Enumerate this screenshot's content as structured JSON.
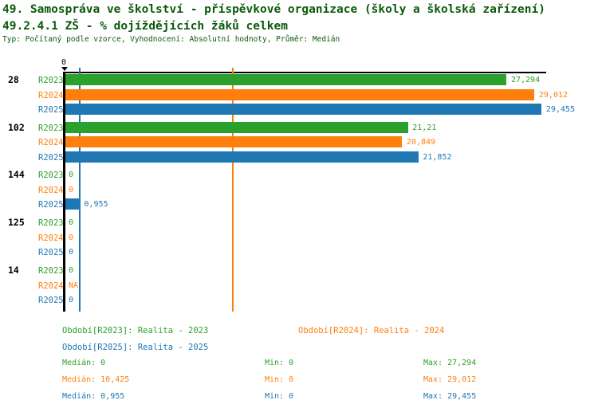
{
  "title": "49. Samospráva ve školství - příspěvkové organizace (školy a školská zařízení)",
  "subtitle": "49.2.4.1 ZŠ - % dojíždějících žáků celkem",
  "meta_line": "Typ: Počítaný podle vzorce, Vyhodnocení: Absolutní hodnoty, Průměr: Medián",
  "colors": {
    "heading_green": "#0a5a0a",
    "r2023_green": "#2ca02c",
    "r2024_orange": "#ff7f0e",
    "r2025_blue": "#1f77b4",
    "axis_black": "#000000"
  },
  "chart_data": {
    "type": "bar",
    "orientation": "horizontal",
    "axis_zero_label": "0",
    "xlim": [
      0,
      29.73
    ],
    "grid": false,
    "series": [
      {
        "key": "R2023",
        "name": "Realita - 2023",
        "color": "#2ca02c"
      },
      {
        "key": "R2024",
        "name": "Realita - 2024",
        "color": "#ff7f0e"
      },
      {
        "key": "R2025",
        "name": "Realita - 2025",
        "color": "#1f77b4"
      }
    ],
    "groups": [
      {
        "id": "28",
        "bars": [
          {
            "series": "R2023",
            "value": 27.294,
            "label": "27,294"
          },
          {
            "series": "R2024",
            "value": 29.012,
            "label": "29,012"
          },
          {
            "series": "R2025",
            "value": 29.455,
            "label": "29,455"
          }
        ]
      },
      {
        "id": "102",
        "bars": [
          {
            "series": "R2023",
            "value": 21.21,
            "label": "21,21"
          },
          {
            "series": "R2024",
            "value": 20.849,
            "label": "20,849"
          },
          {
            "series": "R2025",
            "value": 21.852,
            "label": "21,852"
          }
        ]
      },
      {
        "id": "144",
        "bars": [
          {
            "series": "R2023",
            "value": 0,
            "label": "0"
          },
          {
            "series": "R2024",
            "value": 0,
            "label": "0"
          },
          {
            "series": "R2025",
            "value": 0.955,
            "label": "0,955"
          }
        ]
      },
      {
        "id": "125",
        "bars": [
          {
            "series": "R2023",
            "value": 0,
            "label": "0"
          },
          {
            "series": "R2024",
            "value": 0,
            "label": "0"
          },
          {
            "series": "R2025",
            "value": 0,
            "label": "0"
          }
        ]
      },
      {
        "id": "14",
        "bars": [
          {
            "series": "R2023",
            "value": 0,
            "label": "0"
          },
          {
            "series": "R2024",
            "value": null,
            "label": "NA"
          },
          {
            "series": "R2025",
            "value": 0,
            "label": "0"
          }
        ]
      }
    ],
    "reference_lines": [
      {
        "series": "R2024",
        "value": 10.425,
        "color": "#ff7f0e",
        "meaning": "median R2024"
      },
      {
        "series": "R2025",
        "value": 0.955,
        "color": "#1f77b4",
        "meaning": "median R2025"
      }
    ]
  },
  "legend": {
    "items": [
      {
        "label": "Období[R2023]: Realita - 2023",
        "color": "#2ca02c"
      },
      {
        "label": "Období[R2024]: Realita - 2024",
        "color": "#ff7f0e"
      },
      {
        "label": "Období[R2025]: Realita - 2025",
        "color": "#1f77b4"
      }
    ],
    "stats": [
      {
        "median": "Medián: 0",
        "min": "Min: 0",
        "max": "Max: 27,294",
        "color": "#2ca02c"
      },
      {
        "median": "Medián: 10,425",
        "min": "Min: 0",
        "max": "Max: 29,012",
        "color": "#ff7f0e"
      },
      {
        "median": "Medián: 0,955",
        "min": "Min: 0",
        "max": "Max: 29,455",
        "color": "#1f77b4"
      }
    ]
  }
}
